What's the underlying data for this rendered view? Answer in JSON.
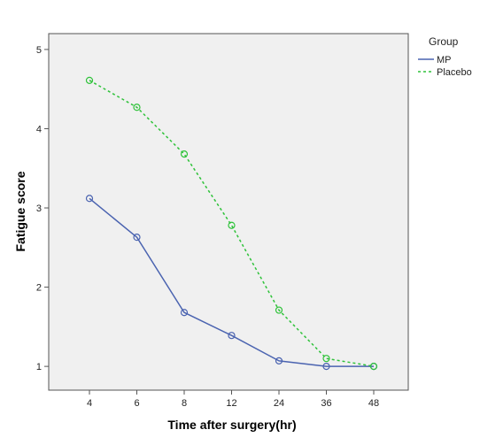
{
  "chart_data": {
    "type": "line",
    "title": "",
    "xlabel": "Time after surgery(hr)",
    "ylabel": "Fatigue score",
    "categories": [
      "4",
      "6",
      "8",
      "12",
      "24",
      "36",
      "48"
    ],
    "ylim": [
      0.7,
      5.2
    ],
    "yticks": [
      1,
      2,
      3,
      4,
      5
    ],
    "grid": false,
    "legend": {
      "title": "Group",
      "position": "top-right"
    },
    "series": [
      {
        "name": "MP",
        "values": [
          3.12,
          2.63,
          1.68,
          1.39,
          1.07,
          1.0,
          1.0
        ],
        "color": "#4a63b0",
        "dash": "solid",
        "marker": "open-circle"
      },
      {
        "name": "Placebo",
        "values": [
          4.61,
          4.27,
          3.68,
          2.78,
          1.71,
          1.1,
          1.0
        ],
        "color": "#2fc23a",
        "dash": "dashed",
        "marker": "open-circle"
      }
    ]
  },
  "colors": {
    "plot_background": "#f0f0f0",
    "axis": "#555555"
  }
}
